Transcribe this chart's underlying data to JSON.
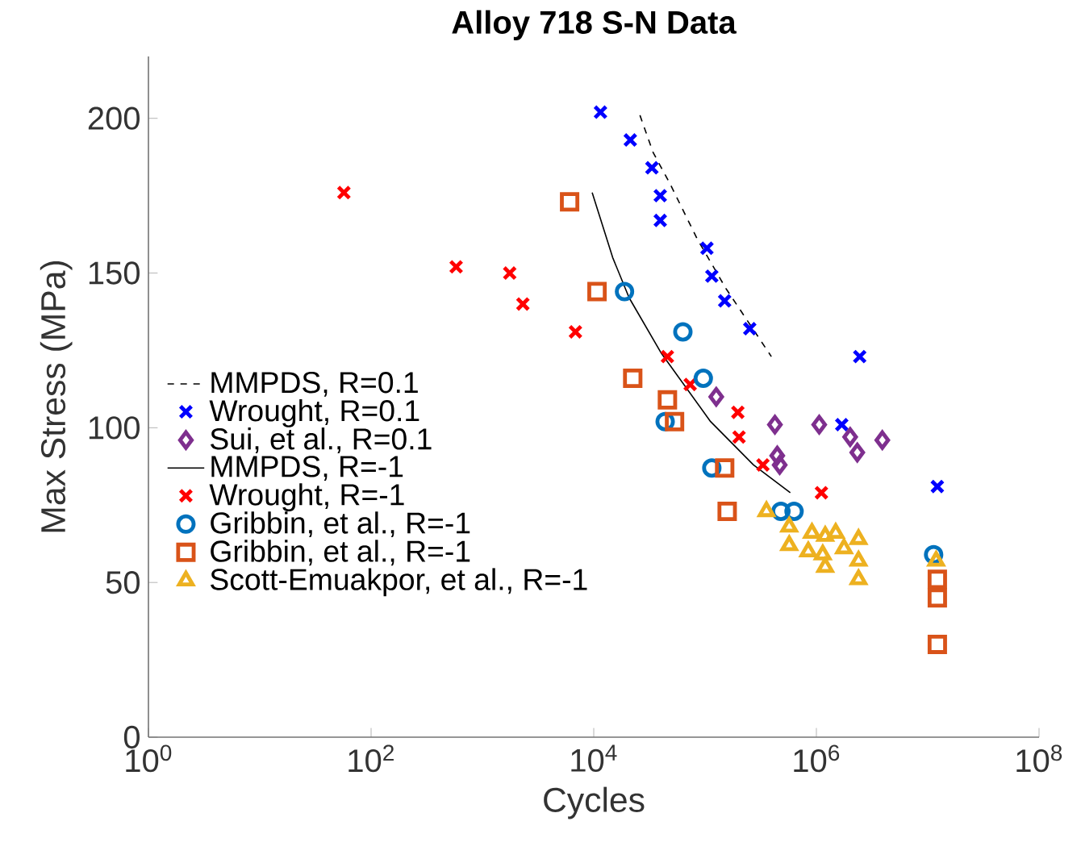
{
  "chart_data": {
    "type": "scatter",
    "title": "Alloy 718 S-N Data",
    "xlabel": "Cycles",
    "ylabel": "Max Stress (MPa)",
    "log": "x",
    "xlim": [
      1,
      100000000
    ],
    "ylim": [
      0,
      220
    ],
    "xticks": [
      {
        "value": 1,
        "label": "10$^{0}$"
      },
      {
        "value": 100,
        "label": "10$^{2}$"
      },
      {
        "value": 10000,
        "label": "10$^{4}$"
      },
      {
        "value": 1000000,
        "label": "10$^{6}$"
      },
      {
        "value": 100000000,
        "label": "10$^{8}$"
      }
    ],
    "yticks": [
      0,
      50,
      100,
      150,
      200
    ],
    "grid": false,
    "legend": "left",
    "series": [
      {
        "name": "MMPDS, R=0.1",
        "type": "line",
        "color": "#000000",
        "line_style": "dashed",
        "marker": "none",
        "x": [
          26000,
          34100,
          48200,
          85100,
          154000,
          394000
        ],
        "values": [
          201,
          189,
          179,
          161,
          145,
          123
        ]
      },
      {
        "name": "Wrought, R=0.1",
        "color": "#0000ff",
        "marker": "cross",
        "x": [
          11500,
          21300,
          33300,
          39600,
          39600,
          104000,
          115000,
          150000,
          252000,
          2450000,
          1690000,
          12200000
        ],
        "values": [
          202,
          193,
          184,
          175,
          167,
          158,
          149,
          141,
          132,
          123,
          101,
          81
        ]
      },
      {
        "name": "Sui, et al., R=0.1",
        "color": "#7e2f8e",
        "marker": "diamond",
        "x": [
          126000,
          424000,
          445000,
          468000,
          1060000,
          2010000,
          2330000,
          3910000
        ],
        "values": [
          110,
          101,
          91,
          88,
          101,
          97,
          92,
          96
        ]
      },
      {
        "name": "MMPDS, R=-1",
        "type": "line",
        "color": "#000000",
        "line_style": "solid",
        "marker": "none",
        "x": [
          9680,
          14800,
          20800,
          40600,
          112000,
          272000,
          583000
        ],
        "values": [
          176,
          155,
          142,
          124,
          102,
          88,
          79
        ]
      },
      {
        "name": "Wrought, R=-1",
        "color": "#ff0000",
        "marker": "cross",
        "x": [
          57,
          581,
          1760,
          2310,
          6850,
          45900,
          73500,
          197000,
          202000,
          331000,
          1110000
        ],
        "values": [
          176,
          152,
          150,
          140,
          131,
          123,
          114,
          105,
          97,
          88,
          79
        ]
      },
      {
        "name": "Gribbin, et al., R=-1",
        "color": "#0072bd",
        "marker": "circle",
        "x": [
          18900,
          63200,
          96400,
          43800,
          115000,
          480000,
          630000,
          11300000
        ],
        "values": [
          144,
          131,
          116,
          102,
          87,
          73,
          73,
          59
        ]
      },
      {
        "name": "Gribbin, et al., R=-1",
        "color": "#d95319",
        "marker": "square",
        "x": [
          6070,
          10700,
          22400,
          45900,
          53200,
          150000,
          158000,
          12200000,
          12200000,
          12200000
        ],
        "values": [
          173,
          144,
          116,
          109,
          102,
          87,
          73,
          51,
          45,
          30
        ]
      },
      {
        "name": "Scott-Emuakpor, et al., R=-1",
        "color": "#edb120",
        "marker": "triangle",
        "x": [
          356000,
          570000,
          570000,
          912000,
          1200000,
          1490000,
          2390000,
          845000,
          1140000,
          1200000,
          1770000,
          2390000,
          2390000,
          11900000
        ],
        "values": [
          73,
          68,
          62,
          66,
          65,
          66,
          64,
          60,
          59,
          55,
          61,
          57,
          51,
          57
        ]
      }
    ]
  }
}
